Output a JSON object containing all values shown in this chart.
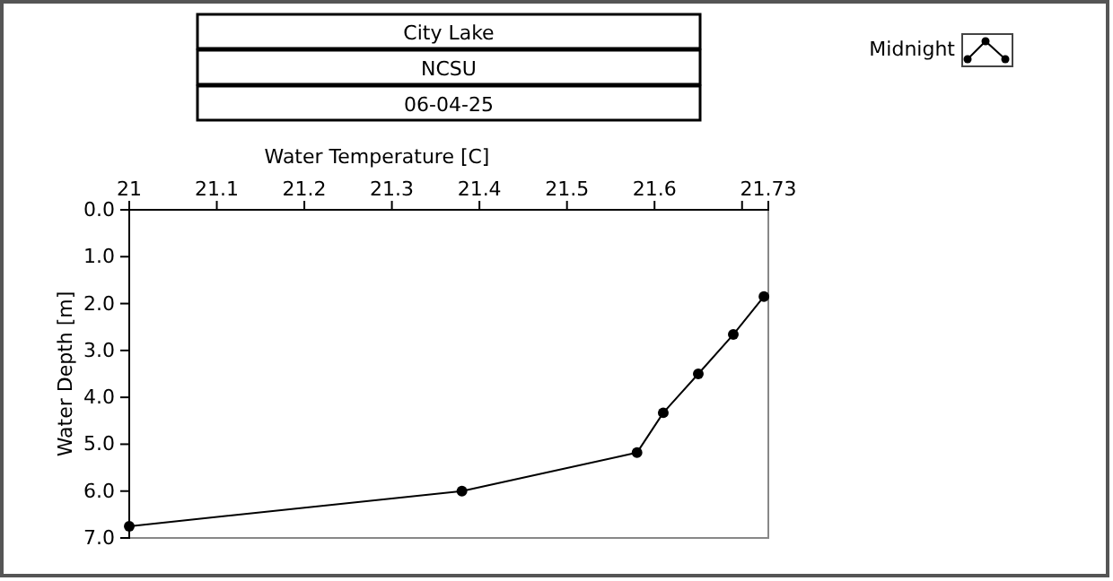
{
  "chart_data": {
    "type": "line",
    "title": "City Lake",
    "subtitle": "NCSU",
    "annotations": [
      "06-04-25"
    ],
    "xlabel": "Water Temperature [C]",
    "ylabel": "Water Depth [m]",
    "xlim": [
      21,
      21.73
    ],
    "xticks": [
      21,
      21.1,
      21.2,
      21.3,
      21.4,
      21.5,
      21.6,
      {
        "value": 21.7,
        "label": null
      },
      21.73
    ],
    "ylim": [
      7.0,
      0.0
    ],
    "yticks": [
      {
        "value": 0,
        "label": "0.0"
      },
      {
        "value": 1,
        "label": "1.0"
      },
      {
        "value": 2,
        "label": "2.0"
      },
      {
        "value": 3,
        "label": "3.0"
      },
      {
        "value": 4,
        "label": "4.0"
      },
      {
        "value": 5,
        "label": "5.0"
      },
      {
        "value": 6,
        "label": "6.0"
      },
      {
        "value": 7,
        "label": "7.0"
      }
    ],
    "series": [
      {
        "name": "Midnight",
        "color": "#000000",
        "x": [
          21.0,
          21.38,
          21.58,
          21.61,
          21.65,
          21.69,
          21.725
        ],
        "values": [
          6.75,
          6.0,
          5.18,
          4.33,
          3.5,
          2.66,
          1.85
        ]
      }
    ],
    "marker": "circle",
    "line_style": "solid",
    "legend": "top right",
    "grid": false
  }
}
